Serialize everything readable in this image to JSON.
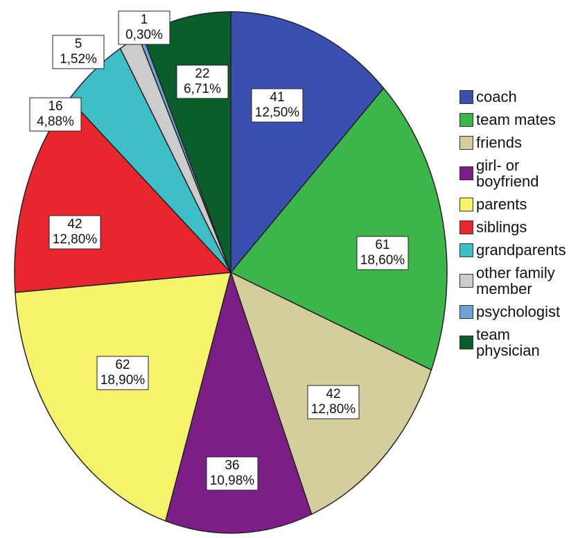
{
  "chart_data": {
    "type": "pie",
    "categories": [
      "coach",
      "team mates",
      "friends",
      "girl- or boyfriend",
      "parents",
      "siblings",
      "grandparents",
      "other family member",
      "psychologist",
      "team physician"
    ],
    "values": [
      41,
      61,
      42,
      36,
      62,
      42,
      16,
      5,
      1,
      22
    ],
    "percentages": [
      12.5,
      18.6,
      12.8,
      10.98,
      18.9,
      12.8,
      4.88,
      1.52,
      0.3,
      6.71
    ],
    "percentage_labels": [
      "12,50%",
      "18,60%",
      "12,80%",
      "10,98%",
      "18,90%",
      "12,80%",
      "4,88%",
      "1,52%",
      "0,30%",
      "6,71%"
    ],
    "colors": [
      "#3a4fb0",
      "#3cb54a",
      "#d6cd9c",
      "#7b1f86",
      "#f5f36a",
      "#e8262e",
      "#3ebfc8",
      "#cccccc",
      "#6fa3d8",
      "#0b5e2b"
    ],
    "legend": "right"
  }
}
